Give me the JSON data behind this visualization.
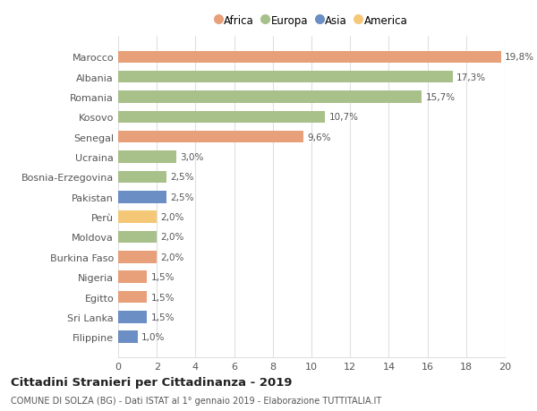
{
  "categories": [
    "Filippine",
    "Sri Lanka",
    "Egitto",
    "Nigeria",
    "Burkina Faso",
    "Moldova",
    "Perù",
    "Pakistan",
    "Bosnia-Erzegovina",
    "Ucraina",
    "Senegal",
    "Kosovo",
    "Romania",
    "Albania",
    "Marocco"
  ],
  "values": [
    1.0,
    1.5,
    1.5,
    1.5,
    2.0,
    2.0,
    2.0,
    2.5,
    2.5,
    3.0,
    9.6,
    10.7,
    15.7,
    17.3,
    19.8
  ],
  "colors": [
    "#6b8ec4",
    "#6b8ec4",
    "#e8a07a",
    "#e8a07a",
    "#e8a07a",
    "#a8c08a",
    "#f5c878",
    "#6b8ec4",
    "#a8c08a",
    "#a8c08a",
    "#e8a07a",
    "#a8c08a",
    "#a8c08a",
    "#a8c08a",
    "#e8a07a"
  ],
  "labels": [
    "1,0%",
    "1,5%",
    "1,5%",
    "1,5%",
    "2,0%",
    "2,0%",
    "2,0%",
    "2,5%",
    "2,5%",
    "3,0%",
    "9,6%",
    "10,7%",
    "15,7%",
    "17,3%",
    "19,8%"
  ],
  "legend": {
    "Africa": "#e8a07a",
    "Europa": "#a8c08a",
    "Asia": "#6b8ec4",
    "America": "#f5c878"
  },
  "xlim": [
    0,
    20
  ],
  "xticks": [
    0,
    2,
    4,
    6,
    8,
    10,
    12,
    14,
    16,
    18,
    20
  ],
  "title": "Cittadini Stranieri per Cittadinanza - 2019",
  "subtitle": "COMUNE DI SOLZA (BG) - Dati ISTAT al 1° gennaio 2019 - Elaborazione TUTTITALIA.IT",
  "background_color": "#ffffff",
  "grid_color": "#e0e0e0",
  "bar_height": 0.6
}
